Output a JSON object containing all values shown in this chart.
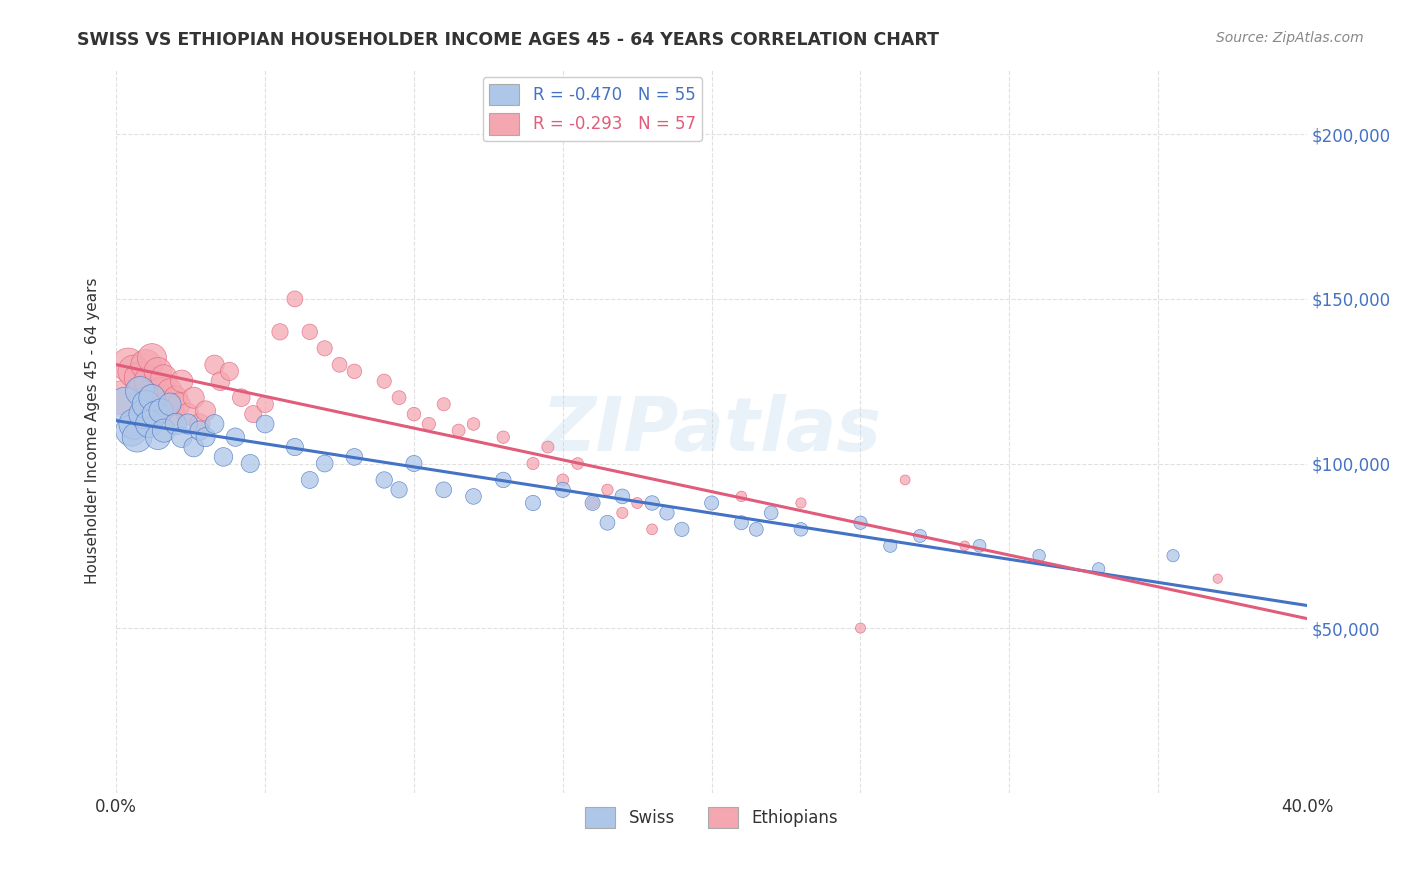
{
  "title": "SWISS VS ETHIOPIAN HOUSEHOLDER INCOME AGES 45 - 64 YEARS CORRELATION CHART",
  "source": "Source: ZipAtlas.com",
  "ylabel": "Householder Income Ages 45 - 64 years",
  "xlim": [
    0.0,
    0.4
  ],
  "ylim": [
    0,
    220000
  ],
  "yticks": [
    0,
    50000,
    100000,
    150000,
    200000
  ],
  "ytick_labels": [
    "",
    "$50,000",
    "$100,000",
    "$150,000",
    "$200,000"
  ],
  "xticks": [
    0.0,
    0.05,
    0.1,
    0.15,
    0.2,
    0.25,
    0.3,
    0.35,
    0.4
  ],
  "swiss_R": -0.47,
  "swiss_N": 55,
  "ethiopian_R": -0.293,
  "ethiopian_N": 57,
  "swiss_color": "#aec6e8",
  "swiss_line_color": "#4472c4",
  "ethiopian_color": "#f4a7b0",
  "ethiopian_line_color": "#e05c7a",
  "background_color": "#ffffff",
  "grid_color": "#cccccc",
  "title_color": "#333333",
  "right_tick_color": "#4472c4",
  "watermark": "ZIPatlas",
  "swiss_x": [
    0.003,
    0.005,
    0.006,
    0.007,
    0.008,
    0.009,
    0.01,
    0.011,
    0.012,
    0.013,
    0.014,
    0.015,
    0.016,
    0.018,
    0.02,
    0.022,
    0.024,
    0.026,
    0.028,
    0.03,
    0.033,
    0.036,
    0.04,
    0.045,
    0.05,
    0.06,
    0.065,
    0.07,
    0.08,
    0.09,
    0.095,
    0.1,
    0.11,
    0.12,
    0.13,
    0.14,
    0.15,
    0.16,
    0.165,
    0.17,
    0.18,
    0.185,
    0.19,
    0.2,
    0.21,
    0.215,
    0.22,
    0.23,
    0.25,
    0.26,
    0.27,
    0.29,
    0.31,
    0.33,
    0.355
  ],
  "swiss_y": [
    118000,
    110000,
    112000,
    108000,
    122000,
    115000,
    118000,
    112000,
    120000,
    115000,
    108000,
    116000,
    110000,
    118000,
    112000,
    108000,
    112000,
    105000,
    110000,
    108000,
    112000,
    102000,
    108000,
    100000,
    112000,
    105000,
    95000,
    100000,
    102000,
    95000,
    92000,
    100000,
    92000,
    90000,
    95000,
    88000,
    92000,
    88000,
    82000,
    90000,
    88000,
    85000,
    80000,
    88000,
    82000,
    80000,
    85000,
    80000,
    82000,
    75000,
    78000,
    75000,
    72000,
    68000,
    72000
  ],
  "swiss_sizes": [
    600,
    500,
    480,
    460,
    440,
    420,
    400,
    380,
    360,
    340,
    320,
    300,
    280,
    260,
    240,
    220,
    210,
    200,
    195,
    190,
    185,
    180,
    175,
    170,
    165,
    155,
    150,
    148,
    145,
    140,
    138,
    135,
    130,
    128,
    125,
    122,
    120,
    118,
    115,
    113,
    110,
    108,
    106,
    104,
    102,
    100,
    98,
    96,
    92,
    90,
    88,
    85,
    82,
    80,
    78
  ],
  "ethiopian_x": [
    0.002,
    0.004,
    0.006,
    0.008,
    0.009,
    0.01,
    0.011,
    0.012,
    0.013,
    0.014,
    0.015,
    0.016,
    0.017,
    0.018,
    0.019,
    0.02,
    0.021,
    0.022,
    0.024,
    0.026,
    0.028,
    0.03,
    0.033,
    0.035,
    0.038,
    0.042,
    0.046,
    0.05,
    0.055,
    0.06,
    0.065,
    0.07,
    0.075,
    0.08,
    0.09,
    0.095,
    0.1,
    0.105,
    0.11,
    0.115,
    0.12,
    0.13,
    0.14,
    0.145,
    0.15,
    0.155,
    0.16,
    0.165,
    0.17,
    0.175,
    0.18,
    0.21,
    0.23,
    0.25,
    0.265,
    0.285,
    0.37
  ],
  "ethiopian_y": [
    120000,
    130000,
    128000,
    126000,
    122000,
    130000,
    125000,
    132000,
    120000,
    128000,
    122000,
    126000,
    118000,
    122000,
    115000,
    120000,
    118000,
    125000,
    115000,
    120000,
    112000,
    116000,
    130000,
    125000,
    128000,
    120000,
    115000,
    118000,
    140000,
    150000,
    140000,
    135000,
    130000,
    128000,
    125000,
    120000,
    115000,
    112000,
    118000,
    110000,
    112000,
    108000,
    100000,
    105000,
    95000,
    100000,
    88000,
    92000,
    85000,
    88000,
    80000,
    90000,
    88000,
    50000,
    95000,
    75000,
    65000
  ],
  "ethiopian_sizes": [
    600,
    580,
    550,
    520,
    500,
    480,
    460,
    440,
    420,
    400,
    380,
    360,
    340,
    320,
    300,
    285,
    270,
    258,
    245,
    232,
    220,
    208,
    196,
    184,
    172,
    162,
    152,
    145,
    138,
    132,
    125,
    120,
    115,
    110,
    105,
    100,
    96,
    92,
    89,
    86,
    83,
    80,
    77,
    75,
    73,
    71,
    69,
    67,
    65,
    63,
    61,
    58,
    55,
    53,
    51,
    49,
    45
  ]
}
